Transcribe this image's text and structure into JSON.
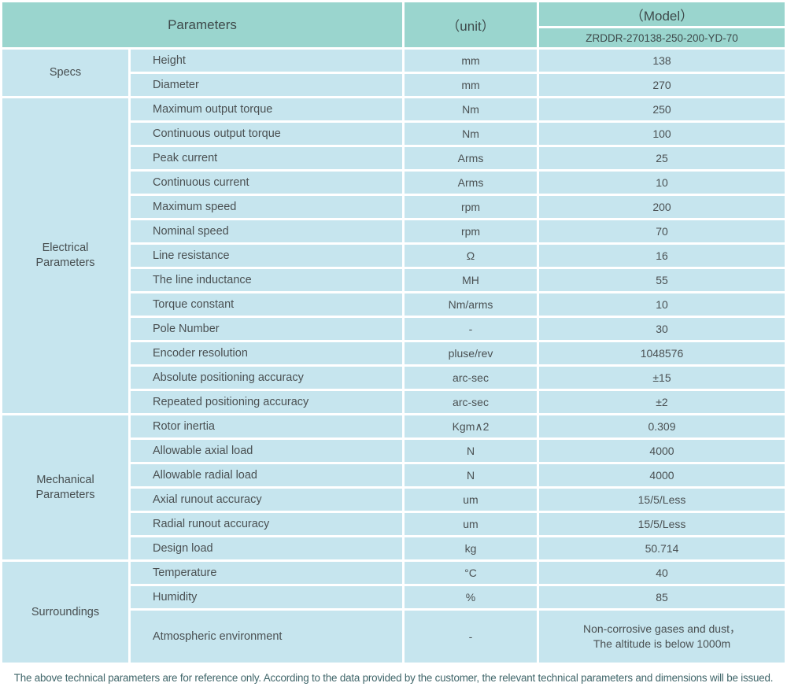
{
  "page": {
    "accent_teal": "#9ad5ce",
    "row_blue": "#c6e5ee",
    "text_color": "#4a5052",
    "footer_color": "#3f6569"
  },
  "table": {
    "header": {
      "parameters_label": "Parameters",
      "unit_label": "（unit）",
      "model_label": "（Model）",
      "model_value": "ZRDDR-270138-250-200-YD-70"
    },
    "sections": [
      {
        "name": "Specs",
        "rows": [
          {
            "param": "Height",
            "unit": "mm",
            "value": "138"
          },
          {
            "param": "Diameter",
            "unit": "mm",
            "value": "270"
          }
        ]
      },
      {
        "name": "Electrical Parameters",
        "rows": [
          {
            "param": "Maximum output torque",
            "unit": "Nm",
            "value": "250"
          },
          {
            "param": "Continuous output torque",
            "unit": "Nm",
            "value": "100"
          },
          {
            "param": "Peak current",
            "unit": "Arms",
            "value": "25"
          },
          {
            "param": "Continuous current",
            "unit": "Arms",
            "value": "10"
          },
          {
            "param": "Maximum speed",
            "unit": "rpm",
            "value": "200"
          },
          {
            "param": "Nominal speed",
            "unit": "rpm",
            "value": "70"
          },
          {
            "param": "Line resistance",
            "unit": "Ω",
            "value": "16"
          },
          {
            "param": "The line inductance",
            "unit": "MH",
            "value": "55"
          },
          {
            "param": "Torque constant",
            "unit": "Nm/arms",
            "value": "10"
          },
          {
            "param": "Pole Number",
            "unit": "-",
            "value": "30"
          },
          {
            "param": "Encoder resolution",
            "unit": "pluse/rev",
            "value": "1048576"
          },
          {
            "param": "Absolute positioning accuracy",
            "unit": "arc-sec",
            "value": "±15"
          },
          {
            "param": "Repeated positioning accuracy",
            "unit": "arc-sec",
            "value": "±2"
          }
        ]
      },
      {
        "name": "Mechanical Parameters",
        "rows": [
          {
            "param": "Rotor inertia",
            "unit": "Kgm∧2",
            "value": "0.309"
          },
          {
            "param": "Allowable axial load",
            "unit": "N",
            "value": "4000"
          },
          {
            "param": "Allowable radial load",
            "unit": "N",
            "value": "4000"
          },
          {
            "param": "Axial runout accuracy",
            "unit": "um",
            "value": "15/5/Less"
          },
          {
            "param": "Radial runout accuracy",
            "unit": "um",
            "value": "15/5/Less"
          },
          {
            "param": "Design load",
            "unit": "kg",
            "value": "50.714"
          }
        ]
      },
      {
        "name": "Surroundings",
        "rows": [
          {
            "param": "Temperature",
            "unit": "°C",
            "value": "40"
          },
          {
            "param": "Humidity",
            "unit": "%",
            "value": "85"
          },
          {
            "param": "Atmospheric environment",
            "unit": "-",
            "value": "Non-corrosive gases and dust，\nThe altitude is below 1000m"
          }
        ]
      }
    ]
  },
  "footer": {
    "note": "The above technical parameters are for reference only. According to the data provided by the customer, the relevant technical parameters and dimensions will be issued."
  }
}
